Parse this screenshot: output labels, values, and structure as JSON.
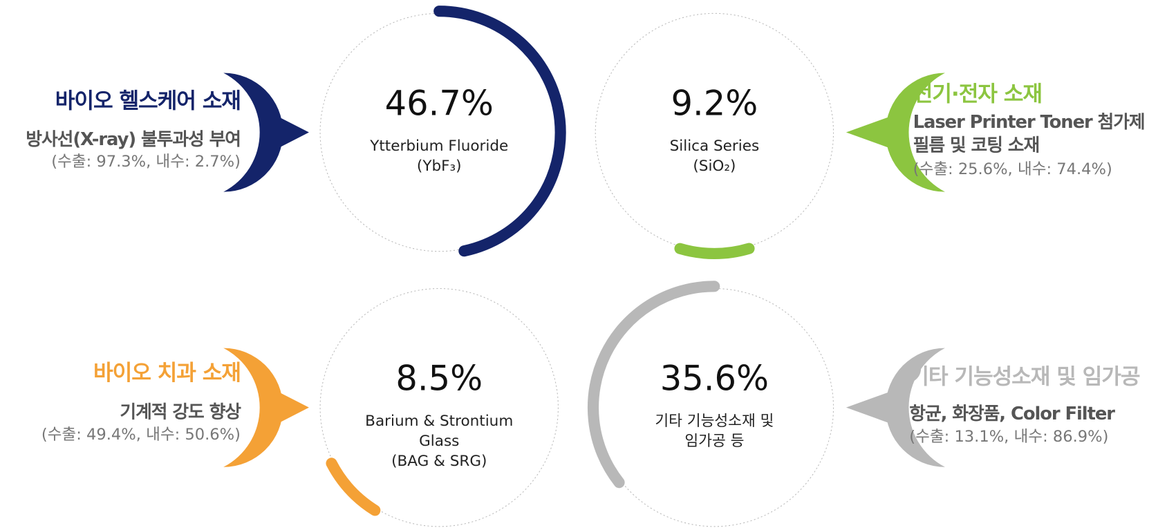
{
  "chart_data": {
    "type": "radial-progress",
    "items": [
      {
        "value": 46.7,
        "value_label": "46.7%",
        "color": "#14246a",
        "name_lines": [
          "Ytterbium Fluoride",
          "(YbF₃)"
        ],
        "category": "바이오 헬스케어 소재",
        "desc_lines": [
          "방사선(X-ray) 불투과성 부여"
        ],
        "breakdown": "(수출: 97.3%, 내수: 2.7%)"
      },
      {
        "value": 9.2,
        "value_label": "9.2%",
        "color": "#8cc540",
        "name_lines": [
          "Silica Series",
          "(SiO₂)"
        ],
        "category": "전기·전자 소재",
        "desc_lines": [
          "Laser Printer Toner 첨가제",
          "필름 및 코팅 소재"
        ],
        "breakdown": "(수출: 25.6%, 내수: 74.4%)"
      },
      {
        "value": 8.5,
        "value_label": "8.5%",
        "color": "#f4a136",
        "name_lines": [
          "Barium & Strontium",
          "Glass",
          "(BAG & SRG)"
        ],
        "category": "바이오 치과 소재",
        "desc_lines": [
          "기계적 강도 향상"
        ],
        "breakdown": "(수출: 49.4%, 내수: 50.6%)"
      },
      {
        "value": 35.6,
        "value_label": "35.6%",
        "color": "#b8b8b8",
        "name_lines": [
          "기타 기능성소재 및",
          "임가공 등"
        ],
        "category": "기타 기능성소재 및 임가공",
        "desc_lines": [
          "항균, 화장품, Color Filter"
        ],
        "breakdown": "(수출: 13.1%, 내수: 86.9%)"
      }
    ]
  }
}
